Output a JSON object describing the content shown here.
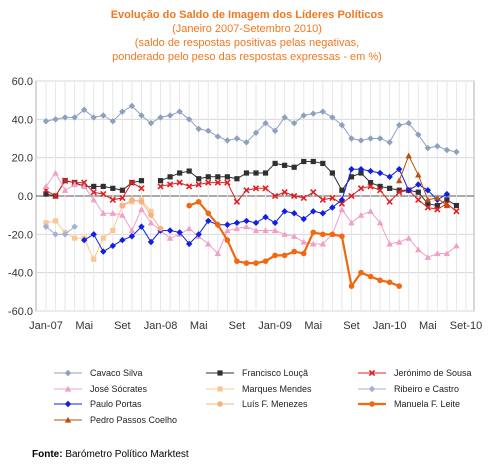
{
  "title": {
    "line1": "Evolução do Saldo  de Imagem dos Líderes Políticos",
    "line2": "(Janeiro 2007-Setembro 2010)",
    "line3": "(saldo de respostas positivas pelas negativas,",
    "line4": "ponderado pelo peso das respostas expressas - em %)"
  },
  "source": {
    "label": "Fonte:",
    "text": " Barómetro Político Marktest"
  },
  "chart_data": {
    "type": "line",
    "title": "Evolução do Saldo  de Imagem dos Líderes Políticos",
    "ylim": [
      -60,
      60
    ],
    "yticks": [
      "60.0",
      "40.0",
      "20.0",
      "0.0",
      "-20.0",
      "-40.0",
      "-60.0"
    ],
    "ytick_values": [
      60,
      40,
      20,
      0,
      -20,
      -40,
      -60
    ],
    "x_count": 45,
    "xticks": [
      {
        "i": 0,
        "label": "Jan-07"
      },
      {
        "i": 4,
        "label": "Mai"
      },
      {
        "i": 8,
        "label": "Set"
      },
      {
        "i": 12,
        "label": "Jan-08"
      },
      {
        "i": 16,
        "label": "Mai"
      },
      {
        "i": 20,
        "label": "Set"
      },
      {
        "i": 24,
        "label": "Jan-09"
      },
      {
        "i": 28,
        "label": "Mai"
      },
      {
        "i": 32,
        "label": "Set"
      },
      {
        "i": 36,
        "label": "Jan-10"
      },
      {
        "i": 40,
        "label": "Mai"
      },
      {
        "i": 44,
        "label": "Set-10"
      }
    ],
    "grid": true,
    "legend_position": "bottom",
    "series": [
      {
        "name": "Cavaco Silva",
        "color": "#8ea0c0",
        "marker": "diamond",
        "start": 0,
        "values": [
          39,
          40,
          41,
          41,
          45,
          41,
          42,
          39,
          44,
          47,
          42,
          38,
          41,
          42,
          44,
          40,
          35,
          34,
          31,
          29,
          30,
          28,
          33,
          38,
          34,
          41,
          38,
          42,
          43,
          44,
          41,
          37,
          30,
          29,
          30,
          30,
          28,
          37,
          38,
          32,
          25,
          26,
          24,
          23
        ]
      },
      {
        "name": "Francisco Louçã",
        "color": "#303030",
        "marker": "square",
        "start": 0,
        "values": [
          1,
          0,
          8,
          7,
          5,
          5,
          5,
          4,
          3,
          7,
          8,
          null,
          8,
          10,
          12,
          13,
          9,
          10,
          10,
          10,
          9,
          12,
          12,
          12,
          17,
          16,
          15,
          18,
          18,
          17,
          12,
          3,
          10,
          12,
          7,
          5,
          4,
          3,
          3,
          2,
          -4,
          -5,
          -2,
          -5
        ]
      },
      {
        "name": "Jerónimo de Sousa",
        "color": "#e02020",
        "marker": "x",
        "start": 0,
        "values": [
          3,
          0,
          8,
          7,
          7,
          2,
          1,
          -2,
          -1,
          7,
          4,
          null,
          5,
          6,
          7,
          5,
          6,
          7,
          7,
          7,
          -3,
          3,
          4,
          4,
          0,
          2,
          0,
          -1,
          2,
          -2,
          -1,
          -4,
          0,
          4,
          5,
          3,
          -3,
          2,
          3,
          -2,
          -6,
          -7,
          -4,
          -8
        ]
      },
      {
        "name": "José Sócrates",
        "color": "#f0a0c8",
        "marker": "triangle",
        "start": 0,
        "values": [
          5,
          12,
          3,
          6,
          5,
          -2,
          -9,
          -9,
          -10,
          -18,
          -7,
          -14,
          -18,
          -22,
          -20,
          -17,
          -21,
          -25,
          -30,
          -18,
          -17,
          -16,
          -18,
          -18,
          -18,
          -20,
          -21,
          -24,
          -25,
          -25,
          -20,
          -7,
          -14,
          -10,
          -8,
          -14,
          -25,
          -24,
          -22,
          -28,
          -32,
          -30,
          -30,
          -26
        ]
      },
      {
        "name": "Marques Mendes",
        "color": "#f8c890",
        "marker": "square",
        "start": 0,
        "values": [
          -14,
          -13,
          -19,
          -22,
          -22,
          -33,
          -22,
          -18,
          -5,
          -3,
          -2,
          -8
        ]
      },
      {
        "name": "Ribeiro e Castro",
        "color": "#a0b0d8",
        "marker": "diamond",
        "start": 0,
        "values": [
          -16,
          -20,
          -20,
          -16
        ]
      },
      {
        "name": "Paulo Portas",
        "color": "#1020e0",
        "marker": "diamond",
        "start": 4,
        "values": [
          -23,
          -20,
          -29,
          -26,
          -23,
          -21,
          -16,
          -24,
          -18,
          -18,
          -19,
          -25,
          -20,
          -13,
          -15,
          -15,
          -14,
          -13,
          -14,
          -11,
          -14,
          -8,
          -9,
          -12,
          -8,
          -9,
          -6,
          -2,
          14,
          14,
          13,
          12,
          10,
          14,
          3,
          6,
          3,
          -2,
          1
        ]
      },
      {
        "name": "Luís F. Menezes",
        "color": "#f8b080",
        "marker": "circle",
        "start": 8,
        "values": [
          -5,
          -2,
          -3,
          -10,
          -17
        ]
      },
      {
        "name": "Manuela F. Leite",
        "color": "#f06810",
        "marker": "circle",
        "start": 15,
        "values": [
          -5,
          -3,
          -9,
          -15,
          -23,
          -34,
          -35,
          -35,
          -34,
          -31,
          -31,
          -29,
          -30,
          -19,
          -20,
          -20,
          -21,
          -47,
          -40,
          -42,
          -44,
          -45,
          -47
        ]
      },
      {
        "name": "Pedro Passos Coelho",
        "color": "#b85010",
        "marker": "triangle",
        "start": 37,
        "values": [
          8,
          21,
          11,
          -2,
          -1,
          -5
        ]
      }
    ]
  }
}
